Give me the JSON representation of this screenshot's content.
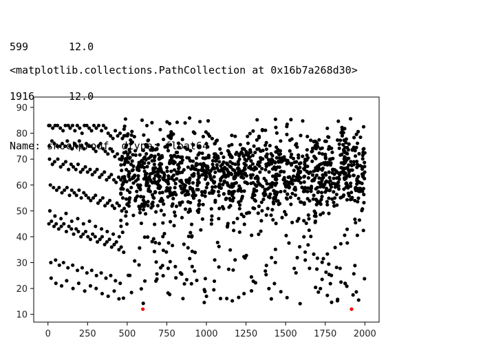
{
  "output": {
    "series_rows": [
      {
        "index": "599",
        "value": "12.0"
      },
      {
        "index": "1916",
        "value": "12.0"
      }
    ],
    "series_footer": "Name: shockproof, dtype: float64",
    "repr_line": "<matplotlib.collections.PathCollection at 0x16b7a268d30>"
  },
  "chart_data": {
    "type": "scatter",
    "title": "",
    "xlabel": "",
    "ylabel": "",
    "xlim": [
      -90,
      2090
    ],
    "ylim": [
      7,
      94
    ],
    "xticks": [
      0,
      250,
      500,
      750,
      1000,
      1250,
      1500,
      1750,
      2000
    ],
    "yticks": [
      10,
      20,
      30,
      40,
      50,
      60,
      70,
      80,
      90
    ],
    "grid": false,
    "legend": "none",
    "colors": {
      "main": "#000000",
      "highlight": "#ff0000"
    },
    "highlight": {
      "x": [
        599,
        1916
      ],
      "y": [
        12,
        12
      ]
    },
    "series": [
      {
        "x": [
          5,
          12,
          30,
          45,
          60,
          78,
          95,
          110,
          128,
          140,
          155,
          170,
          185,
          200,
          215,
          230,
          245,
          260,
          275,
          290,
          305,
          320,
          338,
          350,
          365,
          380,
          395,
          410,
          425,
          440,
          455,
          470,
          480,
          8,
          25,
          40,
          58,
          75,
          90,
          108,
          122,
          138,
          152,
          168,
          182,
          198,
          212,
          228,
          242,
          258,
          272,
          288,
          302,
          318,
          332,
          348,
          362,
          378,
          392,
          408,
          422,
          438,
          452,
          468,
          10,
          28,
          42,
          62,
          80,
          96,
          112,
          130,
          146,
          160,
          176,
          190,
          206,
          220,
          236,
          250,
          266,
          280,
          296,
          310,
          326,
          340,
          356,
          370,
          386,
          400,
          416,
          430,
          446,
          460,
          476,
          15,
          35,
          55,
          70,
          88,
          104,
          120,
          136,
          150,
          166,
          180,
          196,
          210,
          226,
          240,
          256,
          270,
          286,
          300,
          316,
          330,
          346,
          360,
          376,
          390,
          406,
          420,
          436,
          450,
          466,
          6,
          22,
          38,
          52,
          68,
          84,
          100,
          116,
          132,
          148,
          162,
          178,
          192,
          208,
          222,
          238,
          252,
          268,
          282,
          298,
          312,
          328,
          342,
          358,
          372,
          388,
          402,
          418,
          432,
          448,
          462,
          478,
          18,
          48,
          72,
          98,
          126,
          156,
          186,
          216,
          246,
          276,
          306,
          336,
          366,
          396,
          426,
          456,
          20,
          50,
          86,
          118,
          158,
          194,
          232,
          268,
          304,
          342,
          380,
          418,
          448,
          12,
          44,
          82,
          114,
          150,
          188,
          224,
          262,
          300,
          338,
          374,
          412,
          450
        ],
        "y": [
          83,
          83,
          82,
          83,
          83,
          82,
          81,
          83,
          83,
          82,
          83,
          81,
          83,
          82,
          80,
          83,
          83,
          82,
          81,
          83,
          82,
          83,
          81,
          83,
          82,
          80,
          79,
          78,
          81,
          79,
          80,
          78,
          79,
          75,
          77,
          76,
          75,
          75,
          76,
          75,
          77,
          75,
          74,
          76,
          75,
          77,
          75,
          74,
          76,
          75,
          75,
          74,
          73,
          75,
          76,
          74,
          73,
          72,
          74,
          73,
          71,
          72,
          70,
          71,
          70,
          68,
          69,
          70,
          67,
          68,
          69,
          66,
          68,
          67,
          66,
          68,
          65,
          66,
          67,
          65,
          66,
          64,
          65,
          66,
          63,
          64,
          65,
          62,
          63,
          64,
          62,
          61,
          63,
          62,
          61,
          60,
          59,
          58,
          59,
          57,
          58,
          59,
          56,
          58,
          57,
          56,
          58,
          55,
          57,
          56,
          55,
          54,
          55,
          56,
          53,
          54,
          55,
          52,
          53,
          54,
          52,
          51,
          53,
          52,
          50,
          45,
          46,
          44,
          45,
          43,
          44,
          45,
          42,
          44,
          43,
          41,
          43,
          42,
          40,
          41,
          42,
          40,
          39,
          41,
          40,
          38,
          39,
          40,
          37,
          38,
          39,
          36,
          37,
          38,
          35,
          36,
          34,
          30,
          31,
          29,
          30,
          28,
          29,
          27,
          28,
          26,
          27,
          25,
          26,
          24,
          25,
          23,
          22,
          24,
          22,
          21,
          23,
          20,
          22,
          19,
          21,
          20,
          18,
          17,
          19,
          16,
          50,
          48,
          47,
          49,
          46,
          47,
          45,
          46,
          44,
          43,
          42,
          41,
          40
        ]
      }
    ]
  }
}
